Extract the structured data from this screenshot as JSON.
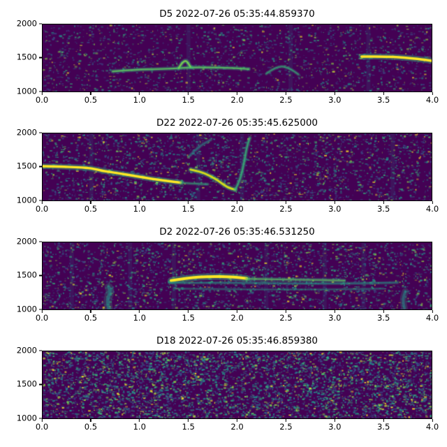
{
  "figure": {
    "background": "#ffffff"
  },
  "chart_data": [
    {
      "type": "heatmap",
      "title": "D5 2022-07-26 05:35:44.859370",
      "xlabel": "",
      "ylabel": "",
      "xlim": [
        0.0,
        4.0
      ],
      "ylim": [
        1000,
        2000
      ],
      "xticks": [
        "0.0",
        "0.5",
        "1.0",
        "1.5",
        "2.0",
        "2.5",
        "3.0",
        "3.5",
        "4.0"
      ],
      "yticks": [
        "2000",
        "1500",
        "1000"
      ],
      "colormap": "viridis",
      "grid": false,
      "colors": {
        "background": "#440154",
        "palette": [
          "#3b528b",
          "#21918c",
          "#35b779",
          "#90d743",
          "#fde725"
        ]
      },
      "noise": {
        "seed": 101,
        "count": 1900,
        "brightness": 0.75
      },
      "streaks": [
        1.5,
        2.55,
        3.35
      ],
      "traces": [
        {
          "points": [
            [
              0.72,
              1300
            ],
            [
              0.95,
              1325
            ],
            [
              1.2,
              1335
            ],
            [
              1.38,
              1345
            ],
            [
              1.52,
              1360
            ],
            [
              1.7,
              1360
            ],
            [
              1.95,
              1350
            ],
            [
              2.12,
              1335
            ]
          ],
          "color": "#5ec962",
          "width": 2.4,
          "alpha": 0.8
        },
        {
          "points": [
            [
              1.4,
              1350
            ],
            [
              1.46,
              1500
            ],
            [
              1.52,
              1370
            ]
          ],
          "color": "#7ad151",
          "width": 2.6,
          "alpha": 0.9
        },
        {
          "points": [
            [
              2.3,
              1265
            ],
            [
              2.42,
              1395
            ],
            [
              2.55,
              1340
            ],
            [
              2.63,
              1255
            ]
          ],
          "color": "#35b779",
          "width": 2.0,
          "alpha": 0.65
        },
        {
          "points": [
            [
              3.28,
              1520
            ],
            [
              3.5,
              1525
            ],
            [
              3.72,
              1505
            ],
            [
              3.9,
              1480
            ],
            [
              4.0,
              1458
            ]
          ],
          "color": "#fde725",
          "width": 3.5,
          "alpha": 1.0
        }
      ]
    },
    {
      "type": "heatmap",
      "title": "D22 2022-07-26 05:35:45.625000",
      "xlabel": "",
      "ylabel": "",
      "xlim": [
        0.0,
        4.0
      ],
      "ylim": [
        1000,
        2000
      ],
      "xticks": [
        "0.0",
        "0.5",
        "1.0",
        "1.5",
        "2.0",
        "2.5",
        "3.0",
        "3.5",
        "4.0"
      ],
      "yticks": [
        "2000",
        "1500",
        "1000"
      ],
      "colormap": "viridis",
      "grid": false,
      "colors": {
        "background": "#440154",
        "palette": [
          "#3b528b",
          "#21918c",
          "#35b779",
          "#90d743",
          "#fde725"
        ]
      },
      "noise": {
        "seed": 202,
        "count": 2500,
        "brightness": 0.85
      },
      "streaks": [
        0.5,
        1.6,
        2.05,
        3.6
      ],
      "traces": [
        {
          "points": [
            [
              0.0,
              1510
            ],
            [
              0.18,
              1505
            ],
            [
              0.38,
              1492
            ],
            [
              0.5,
              1482
            ],
            [
              0.62,
              1440
            ],
            [
              0.78,
              1405
            ],
            [
              0.95,
              1365
            ],
            [
              1.12,
              1322
            ],
            [
              1.3,
              1288
            ],
            [
              1.42,
              1265
            ]
          ],
          "color": "#fde725",
          "width": 3.4,
          "alpha": 1.0
        },
        {
          "points": [
            [
              1.42,
              1265
            ],
            [
              1.55,
              1250
            ],
            [
              1.7,
              1242
            ]
          ],
          "color": "#35b779",
          "width": 2.0,
          "alpha": 0.55
        },
        {
          "points": [
            [
              1.52,
              1460
            ],
            [
              1.62,
              1430
            ],
            [
              1.72,
              1370
            ],
            [
              1.82,
              1280
            ],
            [
              1.9,
              1195
            ],
            [
              1.98,
              1160
            ]
          ],
          "color": "#d8e219",
          "width": 3.0,
          "alpha": 0.95
        },
        {
          "points": [
            [
              1.98,
              1160
            ],
            [
              2.03,
              1300
            ],
            [
              2.07,
              1550
            ],
            [
              2.1,
              1800
            ],
            [
              2.13,
              1930
            ]
          ],
          "color": "#35b779",
          "width": 2.4,
          "alpha": 0.75
        },
        {
          "points": [
            [
              1.5,
              1650
            ],
            [
              1.6,
              1800
            ],
            [
              1.73,
              1905
            ]
          ],
          "color": "#26828e",
          "width": 2.0,
          "alpha": 0.55
        }
      ]
    },
    {
      "type": "heatmap",
      "title": "D2 2022-07-26 05:35:46.531250",
      "xlabel": "",
      "ylabel": "",
      "xlim": [
        0.0,
        4.0
      ],
      "ylim": [
        1000,
        2000
      ],
      "xticks": [
        "0.0",
        "0.5",
        "1.0",
        "1.5",
        "2.0",
        "2.5",
        "3.0",
        "3.5",
        "4.0"
      ],
      "yticks": [
        "2000",
        "1500",
        "1000"
      ],
      "colormap": "viridis",
      "grid": false,
      "colors": {
        "background": "#440154",
        "palette": [
          "#3b528b",
          "#21918c",
          "#35b779",
          "#90d743",
          "#fde725"
        ]
      },
      "noise": {
        "seed": 303,
        "count": 2600,
        "brightness": 0.85
      },
      "streaks": [
        0.3,
        0.9,
        1.35,
        2.3,
        2.9,
        3.3
      ],
      "traces": [
        {
          "points": [
            [
              1.32,
              1430
            ],
            [
              1.5,
              1472
            ],
            [
              1.7,
              1492
            ],
            [
              1.95,
              1487
            ],
            [
              2.1,
              1462
            ]
          ],
          "color": "#fde725",
          "width": 4.0,
          "alpha": 1.0
        },
        {
          "points": [
            [
              2.1,
              1455
            ],
            [
              2.4,
              1447
            ],
            [
              2.8,
              1440
            ],
            [
              3.1,
              1430
            ]
          ],
          "color": "#5ec962",
          "width": 2.4,
          "alpha": 0.65
        },
        {
          "points": [
            [
              1.3,
              1395
            ],
            [
              1.8,
              1400
            ],
            [
              2.3,
              1392
            ],
            [
              2.8,
              1385
            ],
            [
              3.3,
              1390
            ],
            [
              3.65,
              1400
            ]
          ],
          "color": "#21918c",
          "width": 2.0,
          "alpha": 0.55
        },
        {
          "points": [
            [
              1.35,
              1310
            ],
            [
              1.9,
              1300
            ],
            [
              2.5,
              1295
            ],
            [
              3.1,
              1300
            ],
            [
              3.5,
              1310
            ]
          ],
          "color": "#21918c",
          "width": 1.6,
          "alpha": 0.45
        },
        {
          "points": [
            [
              0.68,
              1020
            ],
            [
              0.66,
              1140
            ],
            [
              0.7,
              1260
            ],
            [
              0.68,
              1330
            ]
          ],
          "color": "#21918c",
          "width": 5.0,
          "alpha": 0.55
        },
        {
          "points": [
            [
              3.72,
              1020
            ],
            [
              3.7,
              1140
            ],
            [
              3.73,
              1270
            ]
          ],
          "color": "#21918c",
          "width": 4.0,
          "alpha": 0.5
        }
      ]
    },
    {
      "type": "heatmap",
      "title": "D18 2022-07-26 05:35:46.859380",
      "xlabel": "",
      "ylabel": "",
      "xlim": [
        0.0,
        4.0
      ],
      "ylim": [
        1000,
        2000
      ],
      "xticks": [
        "0.0",
        "0.5",
        "1.0",
        "1.5",
        "2.0",
        "2.5",
        "3.0",
        "3.5",
        "4.0"
      ],
      "yticks": [
        "2000",
        "1500",
        "1000"
      ],
      "colormap": "viridis",
      "grid": false,
      "colors": {
        "background": "#440154",
        "palette": [
          "#3b528b",
          "#21918c",
          "#35b779",
          "#90d743",
          "#fde725"
        ]
      },
      "noise": {
        "seed": 404,
        "count": 4800,
        "brightness": 1.0
      },
      "streaks": [],
      "traces": []
    }
  ]
}
